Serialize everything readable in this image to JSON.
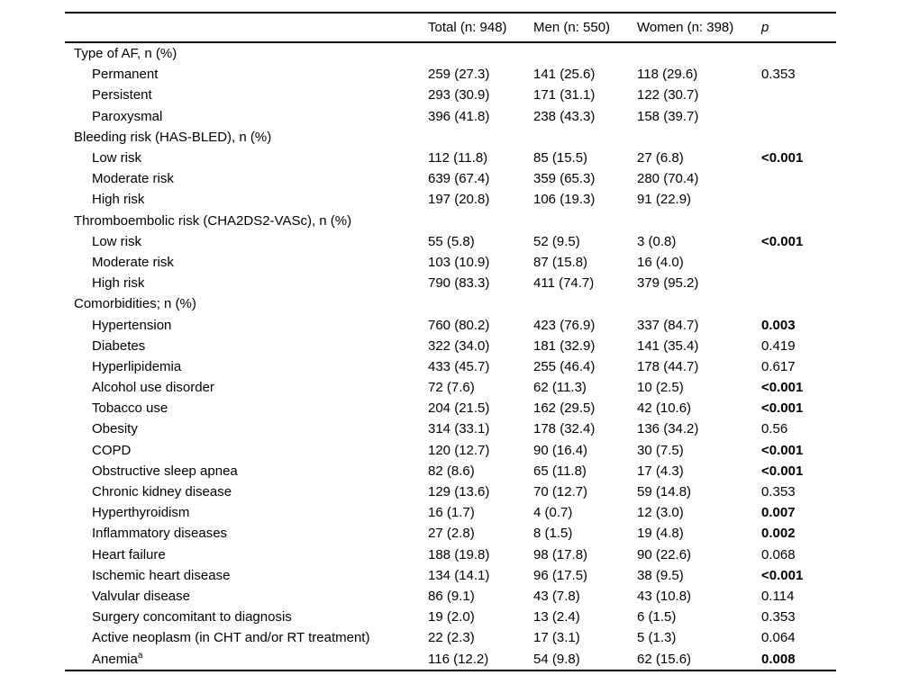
{
  "table": {
    "columns": [
      "",
      "Total (n: 948)",
      "Men (n: 550)",
      "Women (n: 398)",
      "p"
    ],
    "rows": [
      {
        "label": "Type of AF, n (%)",
        "section": true
      },
      {
        "label": "Permanent",
        "indent": true,
        "total": "259 (27.3)",
        "men": "141 (25.6)",
        "women": "118 (29.6)",
        "p": "0.353",
        "p_bold": false
      },
      {
        "label": "Persistent",
        "indent": true,
        "total": "293 (30.9)",
        "men": "171 (31.1)",
        "women": "122 (30.7)",
        "p": ""
      },
      {
        "label": "Paroxysmal",
        "indent": true,
        "total": "396 (41.8)",
        "men": "238 (43.3)",
        "women": "158 (39.7)",
        "p": ""
      },
      {
        "label": "Bleeding risk (HAS-BLED), n (%)",
        "section": true
      },
      {
        "label": "Low risk",
        "indent": true,
        "total": "112 (11.8)",
        "men": "85 (15.5)",
        "women": "27 (6.8)",
        "p": "<0.001",
        "p_bold": true
      },
      {
        "label": "Moderate risk",
        "indent": true,
        "total": "639 (67.4)",
        "men": "359 (65.3)",
        "women": "280 (70.4)",
        "p": ""
      },
      {
        "label": "High risk",
        "indent": true,
        "total": "197 (20.8)",
        "men": "106 (19.3)",
        "women": "91 (22.9)",
        "p": ""
      },
      {
        "label": "Thromboembolic risk (CHA2DS2-VASc), n (%)",
        "section": true
      },
      {
        "label": "Low risk",
        "indent": true,
        "total": "55 (5.8)",
        "men": "52 (9.5)",
        "women": "3 (0.8)",
        "p": "<0.001",
        "p_bold": true
      },
      {
        "label": "Moderate risk",
        "indent": true,
        "total": "103 (10.9)",
        "men": "87 (15.8)",
        "women": "16 (4.0)",
        "p": ""
      },
      {
        "label": "High risk",
        "indent": true,
        "total": "790 (83.3)",
        "men": "411 (74.7)",
        "women": "379 (95.2)",
        "p": ""
      },
      {
        "label": "Comorbidities; n (%)",
        "section": true
      },
      {
        "label": "Hypertension",
        "indent": true,
        "total": "760 (80.2)",
        "men": "423 (76.9)",
        "women": "337 (84.7)",
        "p": "0.003",
        "p_bold": true
      },
      {
        "label": "Diabetes",
        "indent": true,
        "total": "322 (34.0)",
        "men": "181 (32.9)",
        "women": "141 (35.4)",
        "p": "0.419",
        "p_bold": false
      },
      {
        "label": "Hyperlipidemia",
        "indent": true,
        "total": "433 (45.7)",
        "men": "255 (46.4)",
        "women": "178 (44.7)",
        "p": "0.617",
        "p_bold": false
      },
      {
        "label": "Alcohol use disorder",
        "indent": true,
        "total": "72 (7.6)",
        "men": "62 (11.3)",
        "women": "10 (2.5)",
        "p": "<0.001",
        "p_bold": true
      },
      {
        "label": "Tobacco use",
        "indent": true,
        "total": "204 (21.5)",
        "men": "162 (29.5)",
        "women": "42 (10.6)",
        "p": "<0.001",
        "p_bold": true
      },
      {
        "label": "Obesity",
        "indent": true,
        "total": "314 (33.1)",
        "men": "178 (32.4)",
        "women": "136 (34.2)",
        "p": "0.56",
        "p_bold": false
      },
      {
        "label": "COPD",
        "indent": true,
        "total": "120 (12.7)",
        "men": "90 (16.4)",
        "women": "30 (7.5)",
        "p": "<0.001",
        "p_bold": true
      },
      {
        "label": "Obstructive sleep apnea",
        "indent": true,
        "total": "82 (8.6)",
        "men": "65 (11.8)",
        "women": "17 (4.3)",
        "p": "<0.001",
        "p_bold": true
      },
      {
        "label": "Chronic kidney disease",
        "indent": true,
        "total": "129 (13.6)",
        "men": "70 (12.7)",
        "women": "59 (14.8)",
        "p": "0.353",
        "p_bold": false
      },
      {
        "label": "Hyperthyroidism",
        "indent": true,
        "total": "16 (1.7)",
        "men": "4 (0.7)",
        "women": "12 (3.0)",
        "p": "0.007",
        "p_bold": true
      },
      {
        "label": "Inflammatory diseases",
        "indent": true,
        "total": "27 (2.8)",
        "men": "8 (1.5)",
        "women": "19 (4.8)",
        "p": "0.002",
        "p_bold": true
      },
      {
        "label": "Heart failure",
        "indent": true,
        "total": "188 (19.8)",
        "men": "98 (17.8)",
        "women": "90 (22.6)",
        "p": "0.068",
        "p_bold": false
      },
      {
        "label": "Ischemic heart disease",
        "indent": true,
        "total": "134 (14.1)",
        "men": "96 (17.5)",
        "women": "38 (9.5)",
        "p": "<0.001",
        "p_bold": true
      },
      {
        "label": "Valvular disease",
        "indent": true,
        "total": "86 (9.1)",
        "men": "43 (7.8)",
        "women": "43 (10.8)",
        "p": "0.114",
        "p_bold": false
      },
      {
        "label": "Surgery concomitant to diagnosis",
        "indent": true,
        "total": "19 (2.0)",
        "men": "13 (2.4)",
        "women": "6 (1.5)",
        "p": "0.353",
        "p_bold": false
      },
      {
        "label": "Active neoplasm (in CHT and/or RT treatment)",
        "indent": true,
        "total": "22 (2.3)",
        "men": "17 (3.1)",
        "women": "5 (1.3)",
        "p": "0.064",
        "p_bold": false
      },
      {
        "label": "Anemia",
        "label_sup": "a",
        "indent": true,
        "total": "116 (12.2)",
        "men": "54 (9.8)",
        "women": "62 (15.6)",
        "p": "0.008",
        "p_bold": true
      }
    ]
  }
}
